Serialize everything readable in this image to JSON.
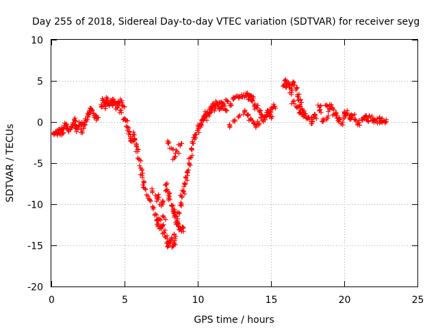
{
  "chart_data": {
    "type": "scatter",
    "title": "Day 255 of 2018, Sidereal Day-to-day VTEC variation (SDTVAR) for receiver seyg",
    "xlabel": "GPS time / hours",
    "ylabel": "SDTVAR / TECUs",
    "xlim": [
      0,
      25
    ],
    "ylim": [
      -20,
      10
    ],
    "xticks": [
      0,
      5,
      10,
      15,
      20,
      25
    ],
    "yticks": [
      -20,
      -15,
      -10,
      -5,
      0,
      5,
      10
    ],
    "xtick_labels": [
      "0",
      "5",
      "10",
      "15",
      "20",
      "25"
    ],
    "ytick_labels": [
      "-20",
      "-15",
      "-10",
      "-5",
      "0",
      "5",
      "10"
    ],
    "grid": true,
    "marker": "+",
    "marker_color": "#ff0000",
    "series": [
      {
        "name": "SDTVAR",
        "x": [
          0.2,
          0.3,
          0.4,
          0.5,
          0.6,
          0.7,
          0.8,
          0.9,
          1.0,
          1.1,
          1.2,
          1.4,
          1.5,
          1.6,
          1.7,
          1.8,
          1.9,
          2.0,
          2.1,
          2.2,
          2.3,
          2.4,
          2.5,
          2.6,
          2.7,
          2.8,
          2.9,
          3.0,
          3.1,
          3.4,
          3.5,
          3.6,
          3.7,
          3.8,
          3.9,
          4.0,
          4.1,
          4.2,
          4.3,
          4.4,
          4.5,
          4.6,
          4.7,
          4.8,
          4.9,
          5.0,
          5.1,
          5.2,
          5.3,
          5.4,
          5.5,
          5.6,
          5.7,
          5.8,
          5.9,
          6.0,
          6.1,
          6.2,
          6.3,
          6.4,
          6.6,
          6.8,
          7.0,
          7.1,
          7.2,
          7.3,
          7.4,
          7.5,
          7.6,
          7.7,
          7.8,
          7.9,
          8.0,
          8.1,
          8.2,
          8.3,
          8.4,
          8.5,
          8.6,
          8.7,
          8.8,
          8.9,
          9.0,
          9.1,
          9.2,
          9.3,
          9.4,
          9.5,
          9.6,
          9.7,
          9.8,
          9.9,
          10.0,
          10.1,
          10.2,
          10.3,
          10.4,
          10.5,
          10.6,
          10.7,
          10.8,
          10.9,
          11.0,
          11.1,
          11.2,
          11.3,
          11.4,
          11.5,
          11.6,
          11.7,
          11.8,
          11.9,
          12.0,
          12.2,
          12.4,
          12.6,
          12.8,
          13.0,
          13.2,
          13.4,
          13.5,
          13.6,
          13.7,
          13.8,
          13.9,
          14.0,
          14.2,
          14.4,
          14.6,
          14.8,
          15.0,
          15.1,
          15.2,
          15.9,
          16.0,
          16.1,
          16.2,
          16.3,
          16.4,
          16.5,
          16.6,
          16.7,
          16.8,
          16.9,
          17.0,
          17.1,
          17.2,
          17.3,
          17.5,
          17.8,
          18.0,
          18.3,
          18.6,
          18.8,
          19.0,
          19.2,
          19.4,
          19.6,
          19.8,
          20.0,
          20.2,
          20.4,
          20.6,
          20.8,
          21.0,
          21.2,
          21.4,
          21.6,
          21.8,
          22.0,
          22.2,
          22.4,
          22.6,
          22.8,
          7.8,
          7.9,
          8.0,
          8.1,
          8.2,
          8.3,
          8.4,
          8.5,
          8.6,
          8.7,
          8.8,
          8.9,
          9.0,
          7.3,
          7.5,
          7.7,
          8.2,
          8.4,
          8.6,
          8.8,
          13.2,
          13.4,
          13.6,
          13.8,
          14.0,
          14.2,
          14.4,
          14.6,
          14.8,
          15.0,
          12.2,
          12.5,
          12.8,
          16.5,
          16.8,
          17.0,
          17.2,
          17.5,
          17.8,
          18.0,
          18.3,
          18.8,
          19.0,
          19.3,
          19.6,
          20.0,
          20.5,
          21.0,
          21.5,
          22.0,
          22.5,
          6.9,
          7.2,
          7.6,
          8.0
        ],
        "y": [
          -1.5,
          -1.2,
          -1.6,
          -1.3,
          -0.9,
          -1.1,
          -1.4,
          -0.6,
          -0.3,
          -0.8,
          -1.0,
          -0.7,
          -0.1,
          0.2,
          -0.5,
          -0.9,
          -0.4,
          -0.2,
          -1.1,
          -0.6,
          -0.3,
          0.1,
          0.6,
          1.2,
          1.6,
          1.4,
          1.0,
          0.8,
          0.5,
          2.1,
          2.6,
          2.3,
          1.9,
          2.7,
          2.4,
          2.2,
          2.6,
          2.0,
          2.5,
          2.1,
          1.7,
          2.3,
          1.4,
          2.6,
          1.9,
          0.4,
          0.2,
          -0.6,
          -1.2,
          -1.8,
          -2.4,
          -1.5,
          -2.2,
          -2.9,
          -3.6,
          -4.5,
          -5.6,
          -6.5,
          -7.4,
          -8.1,
          -9.0,
          -9.6,
          -10.4,
          -11.2,
          -12.0,
          -12.5,
          -11.8,
          -13.0,
          -12.6,
          -13.4,
          -14.0,
          -14.6,
          -15.0,
          -14.8,
          -14.2,
          -15.1,
          -14.7,
          -13.9,
          -12.4,
          -11.0,
          -10.1,
          -9.0,
          -8.5,
          -7.6,
          -6.8,
          -6.0,
          -5.1,
          -4.3,
          -3.4,
          -2.6,
          -2.1,
          -1.5,
          -1.0,
          -0.6,
          -0.2,
          0.3,
          0.7,
          0.5,
          1.1,
          0.9,
          1.5,
          1.2,
          1.8,
          2.0,
          1.6,
          2.3,
          2.1,
          1.7,
          2.4,
          1.9,
          2.2,
          1.4,
          2.6,
          2.0,
          2.8,
          3.1,
          2.9,
          3.3,
          3.0,
          3.4,
          2.8,
          3.2,
          2.5,
          2.9,
          2.2,
          1.8,
          1.3,
          0.8,
          0.5,
          1.2,
          0.7,
          1.6,
          1.9,
          4.6,
          5.0,
          4.4,
          4.8,
          4.2,
          3.6,
          4.9,
          4.5,
          3.9,
          3.3,
          2.7,
          2.1,
          1.6,
          1.2,
          0.8,
          0.5,
          0.3,
          0.6,
          1.8,
          0.2,
          0.5,
          2.1,
          1.6,
          0.9,
          0.4,
          -0.2,
          0.6,
          1.1,
          0.3,
          0.8,
          0.1,
          -0.1,
          0.4,
          0.6,
          0.2,
          0.5,
          0.3,
          0.1,
          0.4,
          0.2,
          0.0,
          -7.6,
          -8.2,
          -8.9,
          -9.4,
          -10.1,
          -10.6,
          -11.0,
          -11.5,
          -12.0,
          -12.4,
          -12.9,
          -13.3,
          -12.8,
          -9.4,
          -10.2,
          -11.6,
          -3.2,
          -4.4,
          -3.6,
          -2.9,
          1.2,
          0.8,
          0.3,
          -0.1,
          -0.4,
          -0.2,
          0.2,
          0.6,
          0.9,
          1.2,
          -0.5,
          0.1,
          0.6,
          2.5,
          1.8,
          1.2,
          0.9,
          0.4,
          -0.2,
          0.8,
          1.4,
          2.0,
          1.5,
          0.9,
          0.2,
          1.0,
          0.6,
          -0.1,
          0.5,
          0.2,
          0.0,
          -8.4,
          -9.1,
          -9.8,
          -2.6
        ]
      }
    ]
  }
}
